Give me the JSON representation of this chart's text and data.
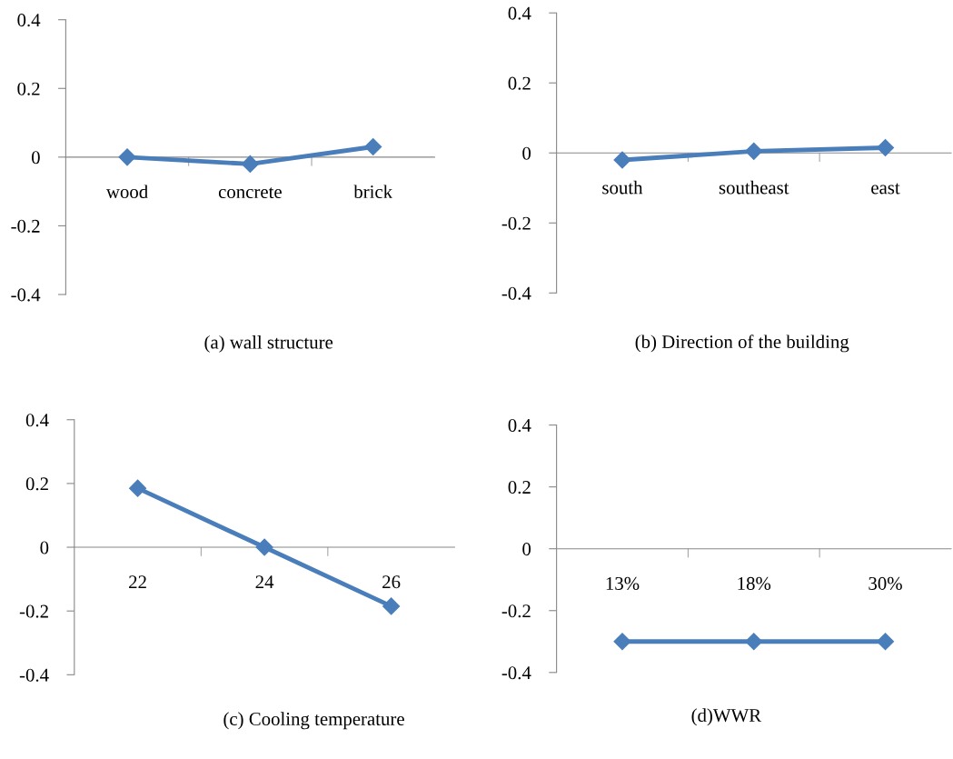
{
  "chart_data": [
    {
      "type": "line",
      "title": "(a) wall structure",
      "categories": [
        "wood",
        "concrete",
        "brick"
      ],
      "series": [
        {
          "color": "#4a7ebb",
          "values": [
            0,
            -0.02,
            0.03
          ]
        }
      ],
      "ylim": [
        -0.4,
        0.4
      ],
      "yticks": [
        -0.4,
        -0.2,
        0,
        0.2,
        0.4
      ],
      "marker": "diamond",
      "line_style": "solid",
      "grid": false,
      "legend": false
    },
    {
      "type": "line",
      "title": "(b) Direction of the building",
      "categories": [
        "south",
        "southeast",
        "east"
      ],
      "series": [
        {
          "color": "#4a7ebb",
          "values": [
            -0.02,
            0.005,
            0.015
          ]
        }
      ],
      "ylim": [
        -0.4,
        0.4
      ],
      "yticks": [
        -0.4,
        -0.2,
        0,
        0.2,
        0.4
      ],
      "marker": "diamond",
      "line_style": "solid",
      "grid": false,
      "legend": false
    },
    {
      "type": "line",
      "title": "(c) Cooling temperature",
      "categories": [
        "22",
        "24",
        "26"
      ],
      "series": [
        {
          "color": "#4a7ebb",
          "values": [
            0.185,
            0,
            -0.185
          ]
        }
      ],
      "ylim": [
        -0.4,
        0.4
      ],
      "yticks": [
        -0.4,
        -0.2,
        0,
        0.2,
        0.4
      ],
      "marker": "diamond",
      "line_style": "solid",
      "grid": false,
      "legend": false
    },
    {
      "type": "line",
      "title": "(d)WWR",
      "categories": [
        "13%",
        "18%",
        "30%"
      ],
      "series": [
        {
          "color": "#4a7ebb",
          "values": [
            -0.3,
            -0.3,
            -0.3
          ]
        }
      ],
      "ylim": [
        -0.4,
        0.4
      ],
      "yticks": [
        -0.4,
        -0.2,
        0,
        0.2,
        0.4
      ],
      "marker": "diamond",
      "line_style": "solid",
      "grid": false,
      "legend": false
    }
  ]
}
